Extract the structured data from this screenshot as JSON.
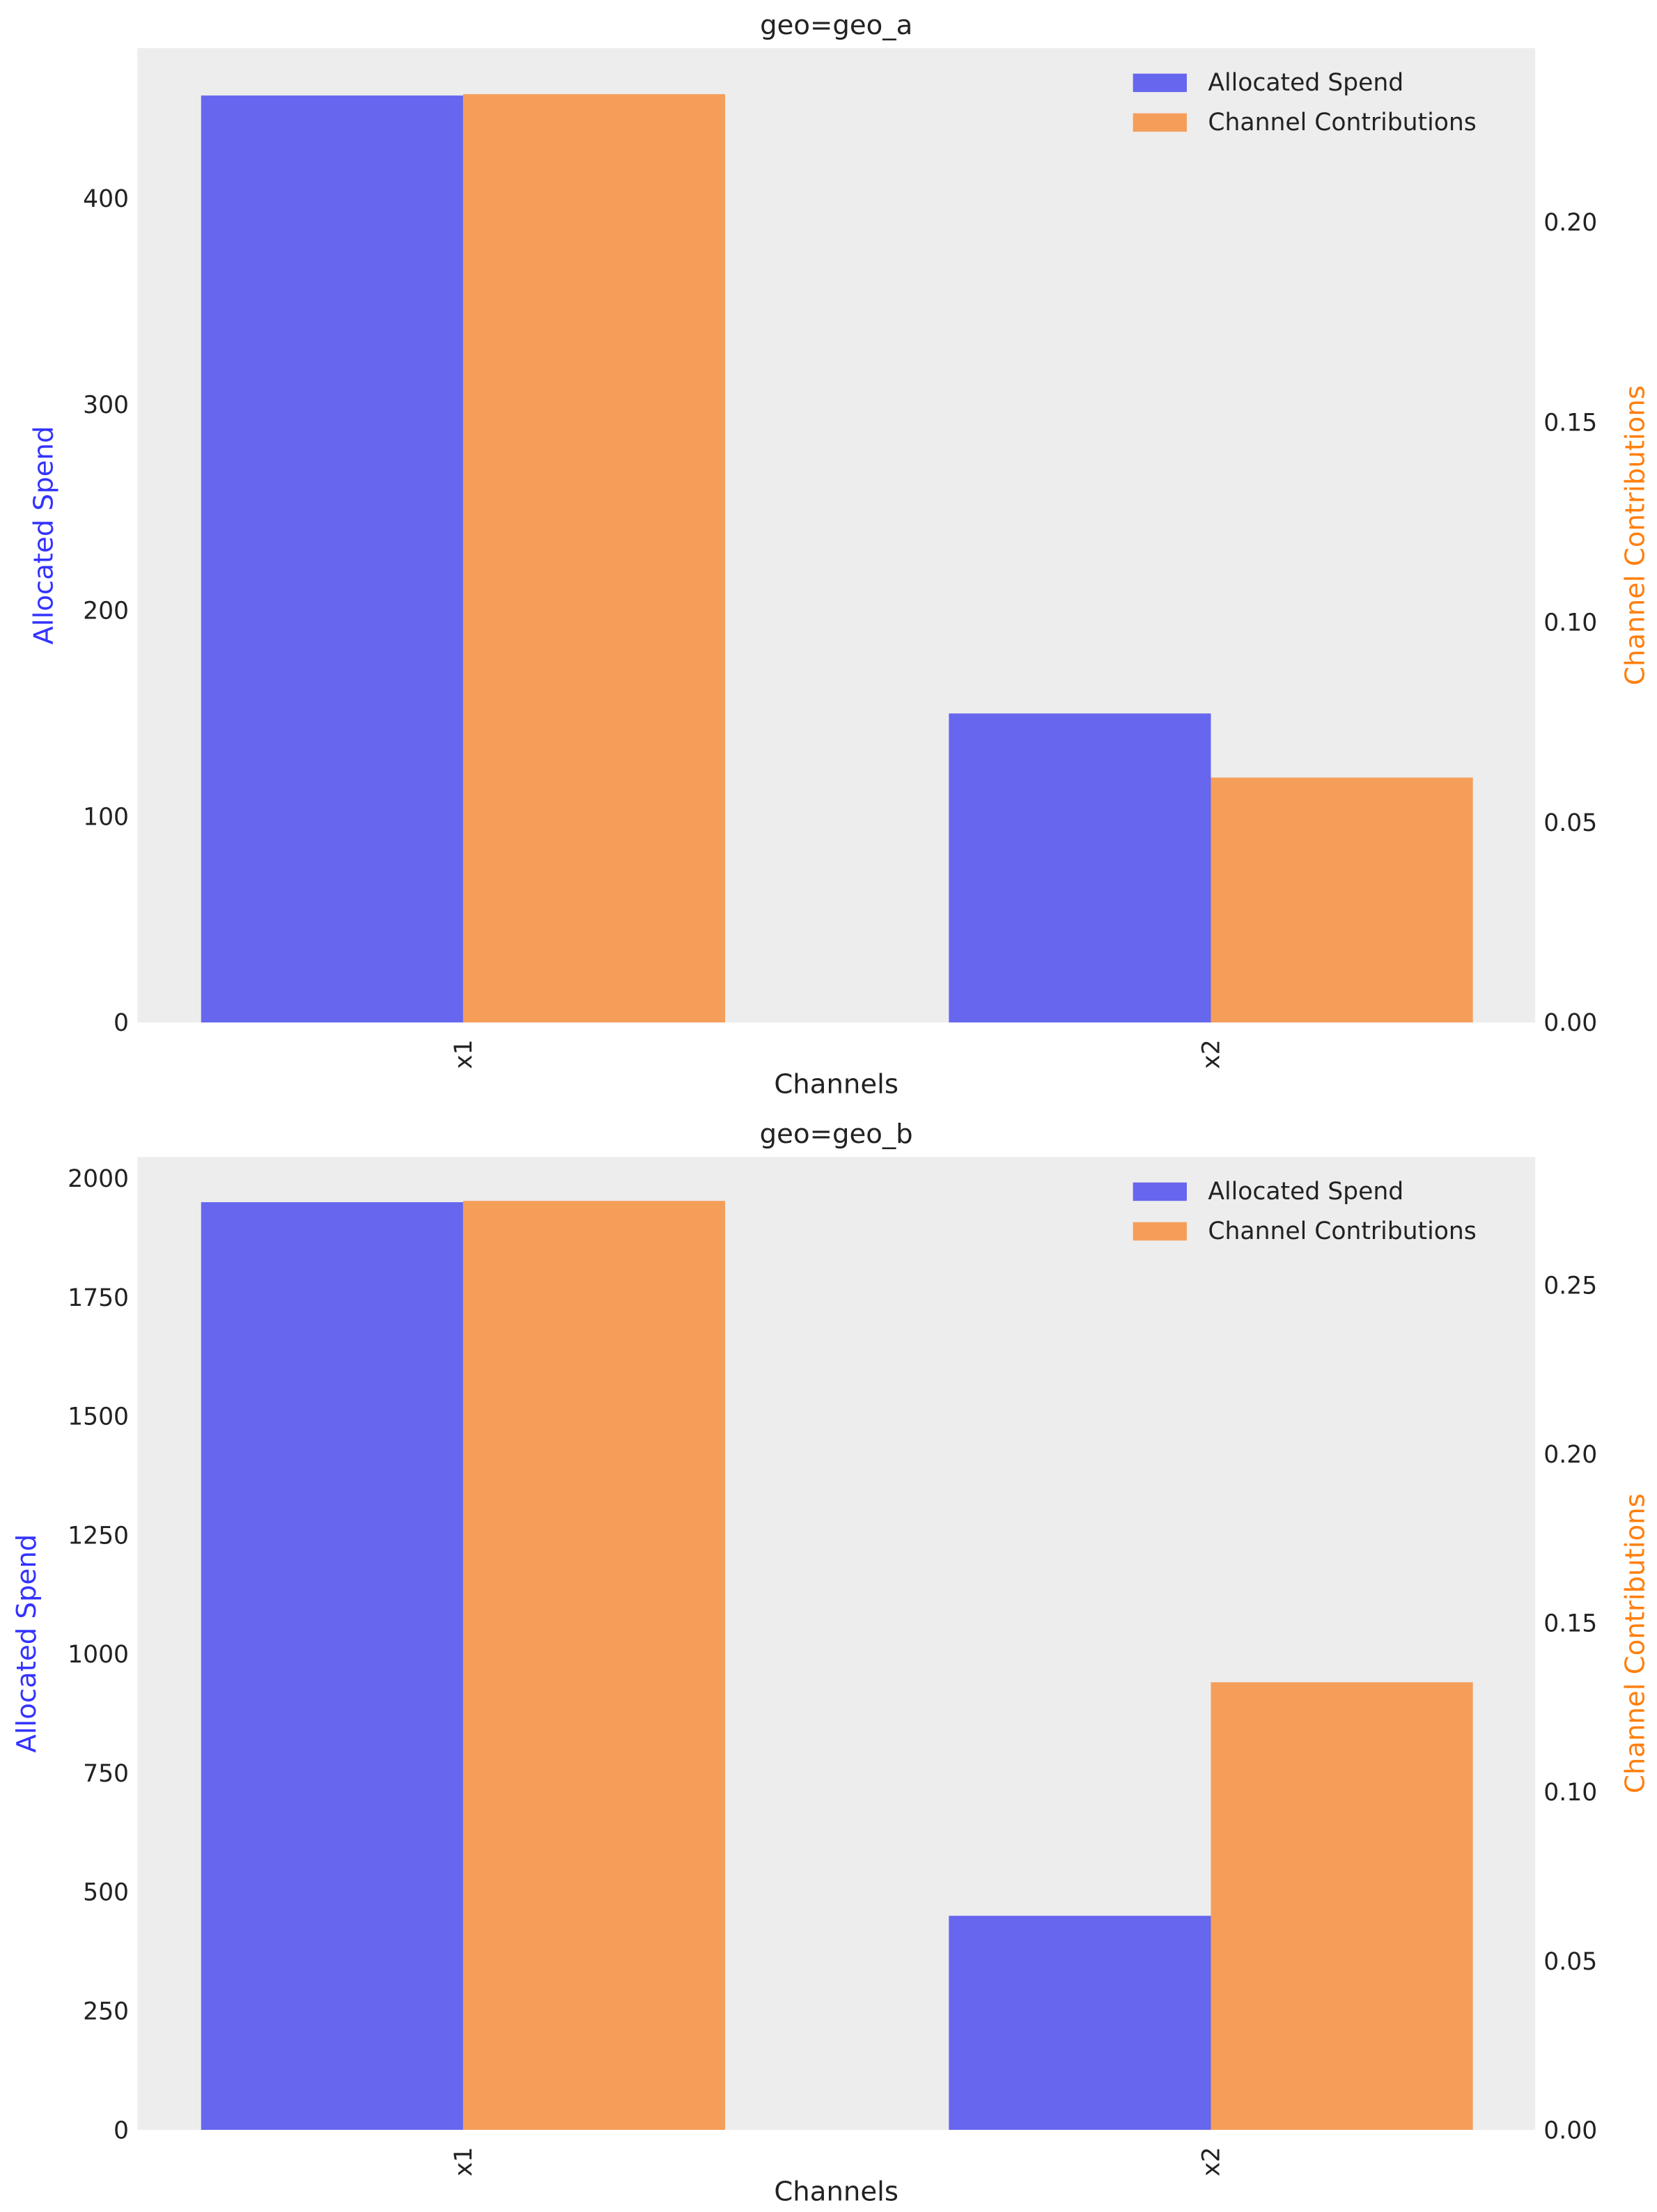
{
  "chart_data": [
    {
      "type": "bar",
      "title": "geo=geo_a",
      "xlabel": "Channels",
      "ylabel": "Allocated Spend",
      "ylabel_right": "Channel Contributions",
      "categories": [
        "x1",
        "x2"
      ],
      "ylim": [
        0,
        473
      ],
      "ylim_right": [
        0,
        0.2435
      ],
      "yticks": [
        0,
        100,
        200,
        300,
        400
      ],
      "yticks_right": [
        "0.00",
        "0.05",
        "0.10",
        "0.15",
        "0.20"
      ],
      "series": [
        {
          "name": "Allocated Spend",
          "axis": "left",
          "color": "#6666ee",
          "values": [
            450,
            150
          ]
        },
        {
          "name": "Channel Contributions",
          "axis": "right",
          "color": "#f59e5a",
          "values": [
            0.232,
            0.0612
          ]
        }
      ],
      "legend": "top-right",
      "grid": false
    },
    {
      "type": "bar",
      "title": "geo=geo_b",
      "xlabel": "Channels",
      "ylabel": "Allocated Spend",
      "ylabel_right": "Channel Contributions",
      "categories": [
        "x1",
        "x2"
      ],
      "ylim": [
        0,
        2045
      ],
      "ylim_right": [
        0,
        0.288
      ],
      "yticks": [
        0,
        250,
        500,
        750,
        1000,
        1250,
        1500,
        1750,
        2000
      ],
      "yticks_right": [
        "0.00",
        "0.05",
        "0.10",
        "0.15",
        "0.20",
        "0.25"
      ],
      "series": [
        {
          "name": "Allocated Spend",
          "axis": "left",
          "color": "#6666ee",
          "values": [
            1950,
            450
          ]
        },
        {
          "name": "Channel Contributions",
          "axis": "right",
          "color": "#f59e5a",
          "values": [
            0.275,
            0.1325
          ]
        }
      ],
      "legend": "top-right",
      "grid": false
    }
  ],
  "colors": {
    "left_axis_label": "#3333ff",
    "right_axis_label": "#ff7f0e",
    "plot_background": "#ededed"
  }
}
